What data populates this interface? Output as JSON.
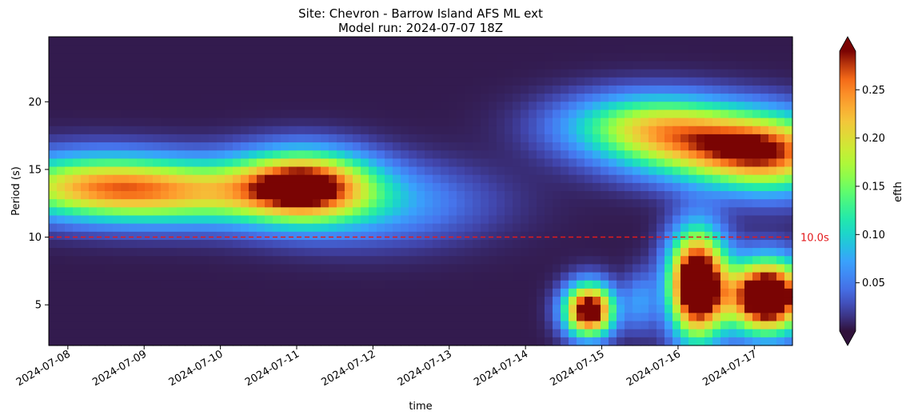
{
  "chart_data": {
    "type": "heatmap",
    "title": "Site: Chevron - Barrow Island AFS ML ext",
    "subtitle": "Model run: 2024-07-07 18Z",
    "xlabel": "time",
    "ylabel": "Period (s)",
    "colorbar_label": "efth",
    "x_range": [
      "2024-07-07T18:00",
      "2024-07-17T12:00"
    ],
    "ylim": [
      2,
      24.8
    ],
    "x_ticks": [
      "2024-07-08",
      "2024-07-09",
      "2024-07-10",
      "2024-07-11",
      "2024-07-12",
      "2024-07-13",
      "2024-07-14",
      "2024-07-15",
      "2024-07-16",
      "2024-07-17"
    ],
    "y_ticks": [
      5,
      10,
      15,
      20
    ],
    "y_tick_labels": [
      "5",
      "10",
      "15",
      "20"
    ],
    "colorbar_range": [
      0,
      0.29
    ],
    "colorbar_ticks": [
      0.05,
      0.1,
      0.15,
      0.2,
      0.25
    ],
    "colorbar_tick_labels": [
      "0.05",
      "0.10",
      "0.15",
      "0.20",
      "0.25"
    ],
    "colorbar_extend": "both",
    "colormap": "turbo",
    "reference_line": {
      "y": 10,
      "label": "10.0s",
      "color": "#e31a1c",
      "style": "dashed"
    },
    "energy_features": [
      {
        "center_time": "2024-07-08T06:00",
        "center_period": 13.8,
        "period_spread": 1.6,
        "time_spread_days": 0.9,
        "efth": 0.17
      },
      {
        "center_time": "2024-07-09T12:00",
        "center_period": 13.3,
        "period_spread": 1.6,
        "time_spread_days": 1.0,
        "efth": 0.16
      },
      {
        "center_time": "2024-07-11T02:00",
        "center_period": 13.8,
        "period_spread": 1.7,
        "time_spread_days": 0.6,
        "efth": 0.28
      },
      {
        "center_time": "2024-07-12T00:00",
        "center_period": 12.5,
        "period_spread": 2.0,
        "time_spread_days": 1.0,
        "efth": 0.07
      },
      {
        "center_time": "2024-07-14T20:00",
        "center_period": 4.6,
        "period_spread": 1.3,
        "time_spread_days": 0.22,
        "efth": 0.34
      },
      {
        "center_time": "2024-07-15T12:00",
        "center_period": 5.2,
        "period_spread": 1.5,
        "time_spread_days": 0.15,
        "efth": 0.06
      },
      {
        "center_time": "2024-07-16T06:00",
        "center_period": 6.5,
        "period_spread": 2.6,
        "time_spread_days": 0.25,
        "efth": 0.4
      },
      {
        "center_time": "2024-07-17T04:00",
        "center_period": 5.6,
        "period_spread": 1.8,
        "time_spread_days": 0.35,
        "efth": 0.4
      },
      {
        "center_time": "2024-07-15T16:00",
        "center_period": 18.3,
        "period_spread": 1.6,
        "time_spread_days": 0.8,
        "efth": 0.16
      },
      {
        "center_time": "2024-07-16T14:00",
        "center_period": 16.5,
        "period_spread": 1.7,
        "time_spread_days": 0.9,
        "efth": 0.18
      },
      {
        "center_time": "2024-07-17T06:00",
        "center_period": 16.0,
        "period_spread": 2.0,
        "time_spread_days": 0.6,
        "efth": 0.15
      }
    ]
  }
}
